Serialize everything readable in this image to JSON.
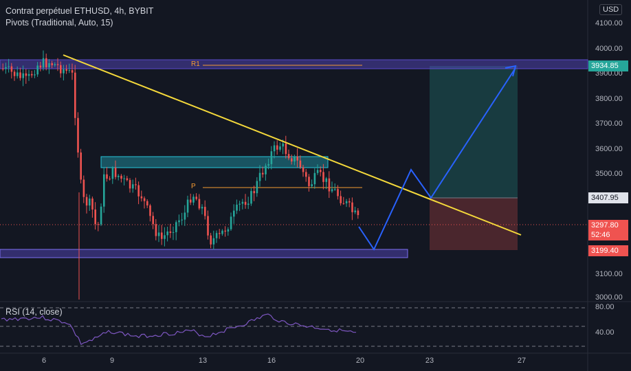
{
  "legend": {
    "title": "Contrat perpétuel ETHUSD, 4h, BYBIT",
    "indicator": "Pivots (Traditional, Auto, 15)"
  },
  "rsi": {
    "label": "RSI (14, close)",
    "ticks": [
      "80.00",
      "40.00"
    ]
  },
  "currency": "USD",
  "price_axis": [
    "4100.00",
    "4000.00",
    "3900.00",
    "3800.00",
    "3700.00",
    "3600.00",
    "3500.00",
    "3100.00",
    "3000.00"
  ],
  "price_tags": {
    "target": "3934.85",
    "entry": "3407.95",
    "current": "3297.80",
    "countdown": "52:46",
    "stop": "3199.40"
  },
  "date_axis": [
    "6",
    "9",
    "13",
    "16",
    "20",
    "23",
    "27"
  ],
  "pivots": {
    "r1": "R1",
    "p": "P"
  },
  "colors": {
    "background": "#131722",
    "up": "#26a69a",
    "down": "#ef5350",
    "trendline": "#f5d93b",
    "projection": "#2962ff",
    "zone_purple": "#5b4bcb",
    "zone_cyan": "#26c6da",
    "pivot": "#f59b33"
  }
}
